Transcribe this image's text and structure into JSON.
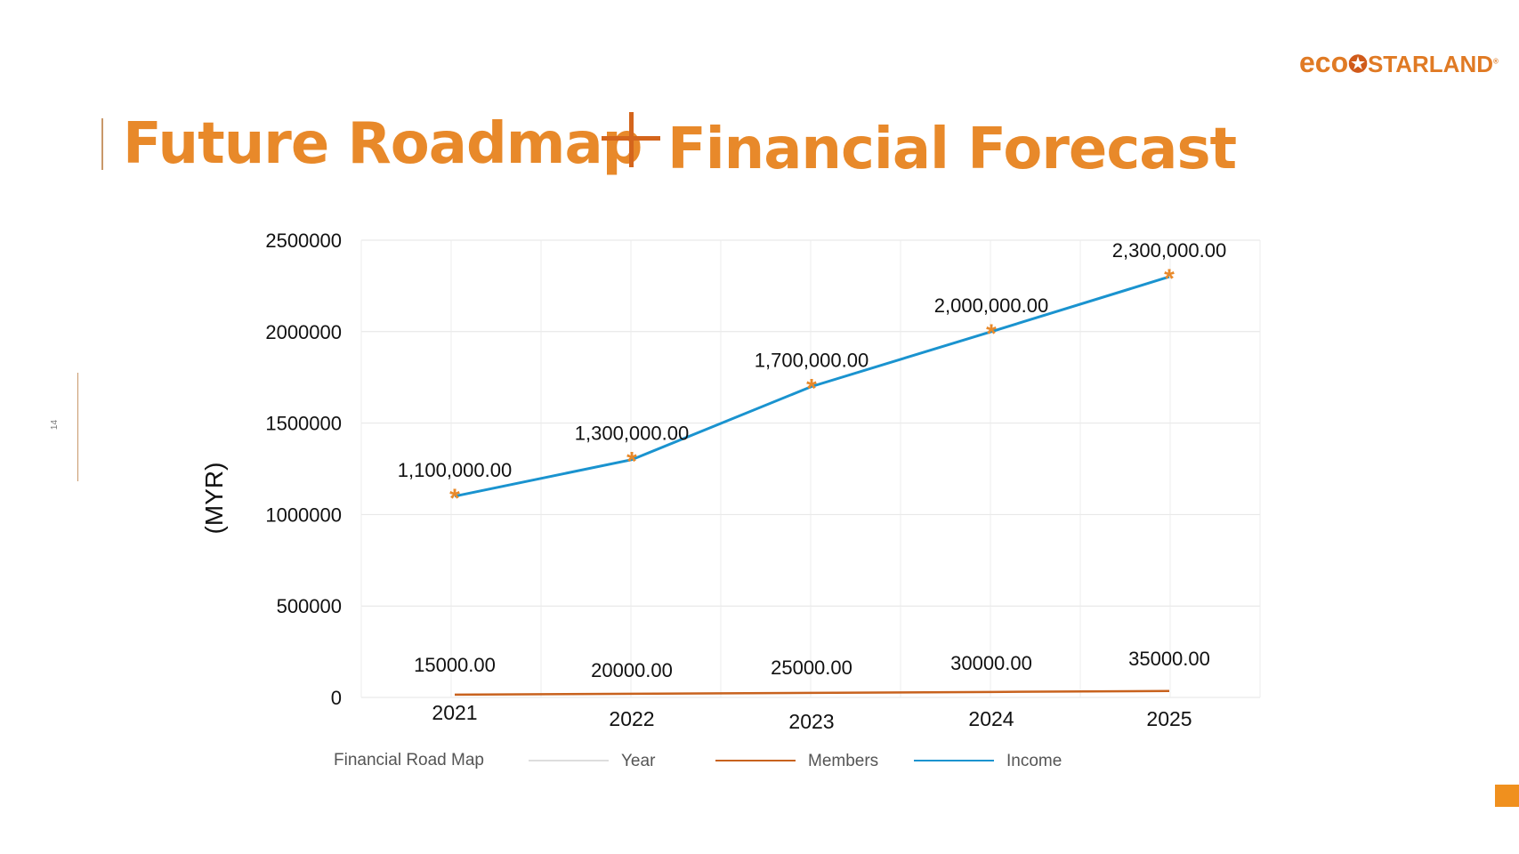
{
  "header": {
    "title_part1": "Future Roadmap",
    "title_part2": "Financial Forecast",
    "logo": "ecoSTARLAND",
    "page_number": "14"
  },
  "colors": {
    "accent": "#e8892a",
    "income": "#1a93cf",
    "members": "#c8621e",
    "marker": "#e8892a"
  },
  "chart_data": {
    "type": "line",
    "title": "Financial Road Map",
    "xlabel": "Year",
    "ylabel": "(MYR)",
    "categories": [
      "2021",
      "2022",
      "2023",
      "2024",
      "2025"
    ],
    "ylim": [
      0,
      2500000
    ],
    "yticks": [
      "0",
      "500000",
      "1000000",
      "1500000",
      "2000000",
      "2500000"
    ],
    "grid": true,
    "legend": "bottom",
    "legend_entries": [
      "Year",
      "Members",
      "Income"
    ],
    "series": [
      {
        "name": "Members",
        "values": [
          15000,
          20000,
          25000,
          30000,
          35000
        ],
        "labels": [
          "15000.00",
          "20000.00",
          "25000.00",
          "30000.00",
          "35000.00"
        ]
      },
      {
        "name": "Income",
        "values": [
          1100000,
          1300000,
          1700000,
          2000000,
          2300000
        ],
        "labels": [
          "1,100,000.00",
          "1,300,000.00",
          "1,700,000.00",
          "2,000,000.00",
          "2,300,000.00"
        ]
      }
    ]
  }
}
